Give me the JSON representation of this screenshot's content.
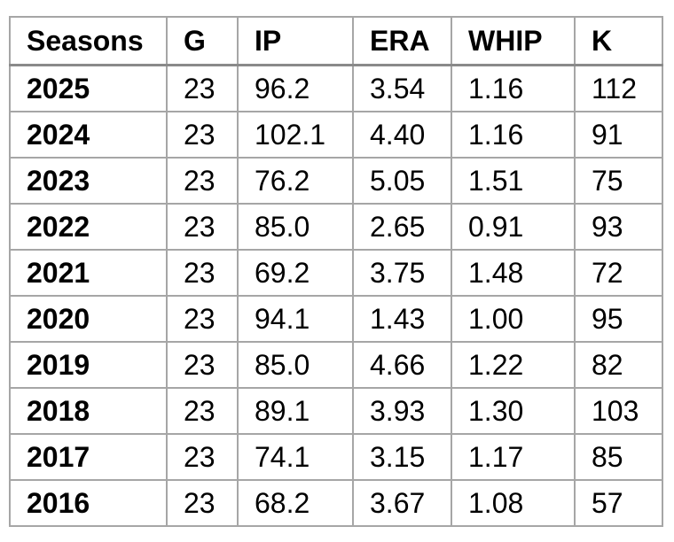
{
  "table": {
    "headers": [
      "Seasons",
      "G",
      "IP",
      "ERA",
      "WHIP",
      "K"
    ],
    "rows": [
      [
        "2025",
        "23",
        "96.2",
        "3.54",
        "1.16",
        "112"
      ],
      [
        "2024",
        "23",
        "102.1",
        "4.40",
        "1.16",
        "91"
      ],
      [
        "2023",
        "23",
        "76.2",
        "5.05",
        "1.51",
        "75"
      ],
      [
        "2022",
        "23",
        "85.0",
        "2.65",
        "0.91",
        "93"
      ],
      [
        "2021",
        "23",
        "69.2",
        "3.75",
        "1.48",
        "72"
      ],
      [
        "2020",
        "23",
        "94.1",
        "1.43",
        "1.00",
        "95"
      ],
      [
        "2019",
        "23",
        "85.0",
        "4.66",
        "1.22",
        "82"
      ],
      [
        "2018",
        "23",
        "89.1",
        "3.93",
        "1.30",
        "103"
      ],
      [
        "2017",
        "23",
        "74.1",
        "3.15",
        "1.17",
        "85"
      ],
      [
        "2016",
        "23",
        "68.2",
        "3.67",
        "1.08",
        "57"
      ]
    ]
  }
}
